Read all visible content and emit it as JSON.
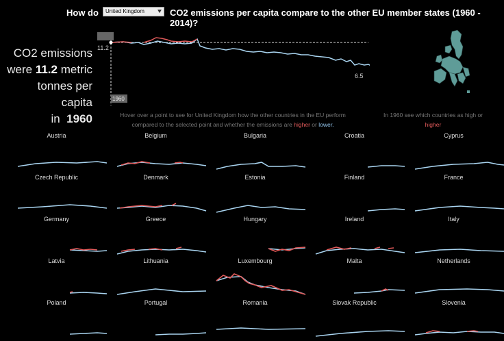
{
  "header": {
    "prefix": "How do",
    "dropdown_value": "United Kingdom",
    "suffix": "CO2 emissions per capita compare to the other EU member states (1960 - 2014)?"
  },
  "callout": {
    "line1": "CO2 emissions",
    "line2_pre": "were",
    "value": "11.2",
    "line2_post": "metric",
    "line3": "tonnes per capita",
    "line4_pre": "in",
    "year": "1960"
  },
  "main_chart": {
    "start_label": "11.2",
    "end_label": "6.5",
    "year_marker": "1960",
    "colors": {
      "higher": "#e05a5a",
      "lower": "#a9d4f0"
    }
  },
  "hover_note": {
    "part1": "Hover over a point to see for  United Kingdom how the other countries in the EU perform",
    "part2": "compared to the selected point and whether the emissions are",
    "higher": "higher",
    "or": "or",
    "lower": "lower."
  },
  "map_note": {
    "part1": "In 1960 see which countries as high or",
    "higher": "higher"
  },
  "countries": [
    {
      "name": "Austria"
    },
    {
      "name": "Belgium"
    },
    {
      "name": "Bulgaria"
    },
    {
      "name": "Croatia"
    },
    {
      "name": "Cyprus"
    },
    {
      "name": "Czech Republic"
    },
    {
      "name": "Denmark"
    },
    {
      "name": "Estonia"
    },
    {
      "name": "Finland"
    },
    {
      "name": "France"
    },
    {
      "name": "Germany"
    },
    {
      "name": "Greece"
    },
    {
      "name": "Hungary"
    },
    {
      "name": "Ireland"
    },
    {
      "name": "Italy"
    },
    {
      "name": "Latvia"
    },
    {
      "name": "Lithuania"
    },
    {
      "name": "Luxembourg"
    },
    {
      "name": "Malta"
    },
    {
      "name": "Netherlands"
    },
    {
      "name": "Poland"
    },
    {
      "name": "Portugal"
    },
    {
      "name": "Romania"
    },
    {
      "name": "Slovak Republic"
    },
    {
      "name": "Slovenia"
    }
  ]
}
